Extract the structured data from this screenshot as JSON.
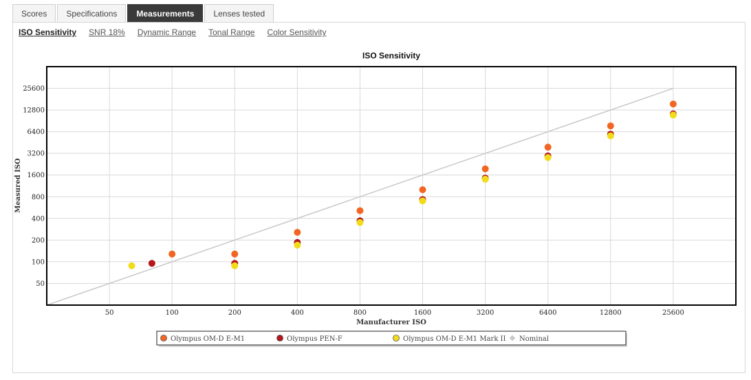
{
  "tabs": [
    "Scores",
    "Specifications",
    "Measurements",
    "Lenses tested"
  ],
  "subtabs": [
    "ISO Sensitivity",
    "SNR 18%",
    "Dynamic Range",
    "Tonal Range",
    "Color Sensitivity"
  ],
  "chart_data": {
    "type": "scatter",
    "title": "ISO Sensitivity",
    "xlabel": "Manufacturer ISO",
    "ylabel": "Measured ISO",
    "xscale": "log2",
    "yscale": "log2",
    "xticks": [
      50,
      100,
      200,
      400,
      800,
      1600,
      3200,
      6400,
      12800,
      25600
    ],
    "yticks": [
      50,
      100,
      200,
      400,
      800,
      1600,
      3200,
      6400,
      12800,
      25600
    ],
    "xlim": [
      25,
      51200
    ],
    "ylim": [
      25,
      51200
    ],
    "grid": true,
    "legend": "bottom",
    "series": [
      {
        "name": "Olympus OM-D E-M1",
        "color": "#f26522",
        "points": [
          [
            100,
            128
          ],
          [
            200,
            128
          ],
          [
            400,
            256
          ],
          [
            800,
            512
          ],
          [
            1600,
            1000
          ],
          [
            3200,
            1950
          ],
          [
            6400,
            3900
          ],
          [
            12800,
            7700
          ],
          [
            25600,
            15500
          ]
        ]
      },
      {
        "name": "Olympus PEN-F",
        "color": "#b5151b",
        "points": [
          [
            80,
            95
          ],
          [
            200,
            95
          ],
          [
            400,
            185
          ],
          [
            800,
            370
          ],
          [
            1600,
            730
          ],
          [
            3200,
            1450
          ],
          [
            6400,
            2950
          ],
          [
            12800,
            5900
          ],
          [
            25600,
            11300
          ]
        ]
      },
      {
        "name": "Olympus OM-D E-M1 Mark II",
        "color": "#f2dc1a",
        "points": [
          [
            64,
            88
          ],
          [
            200,
            88
          ],
          [
            400,
            170
          ],
          [
            800,
            350
          ],
          [
            1600,
            700
          ],
          [
            3200,
            1400
          ],
          [
            6400,
            2800
          ],
          [
            12800,
            5600
          ],
          [
            25600,
            10900
          ]
        ]
      },
      {
        "name": "Nominal",
        "color": "#c8c8c8",
        "line": [
          [
            25,
            25
          ],
          [
            25600,
            25600
          ]
        ]
      }
    ]
  }
}
